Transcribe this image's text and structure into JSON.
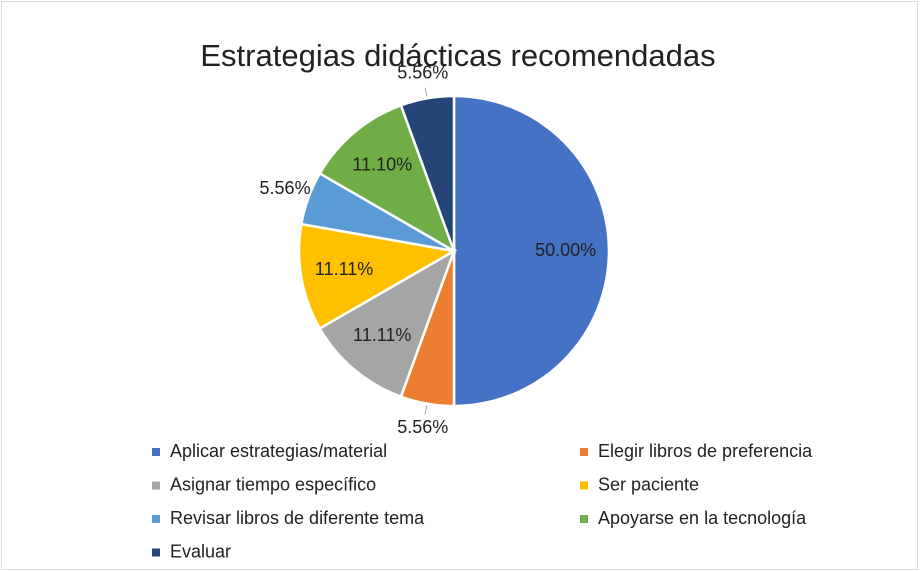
{
  "chart_data": {
    "type": "pie",
    "title": "Estrategias didácticas recomendadas",
    "categories": [
      "Aplicar estrategias/material",
      "Elegir libros de preferencia",
      "Asignar tiempo específico",
      "Ser paciente",
      "Revisar libros de diferente tema",
      "Apoyarse en la tecnología",
      "Evaluar"
    ],
    "values": [
      50,
      5.56,
      11.11,
      11.11,
      5.56,
      11.1,
      5.56
    ],
    "value_labels": [
      "50.00%",
      "5.56%",
      "11.11%",
      "11.11%",
      "5.56%",
      "11.10%",
      "5.56%"
    ],
    "colors": [
      "#4472c4",
      "#ed7d31",
      "#a5a5a5",
      "#ffc000",
      "#5b9bd5",
      "#70ad47",
      "#264478"
    ],
    "legend": "bottom"
  }
}
